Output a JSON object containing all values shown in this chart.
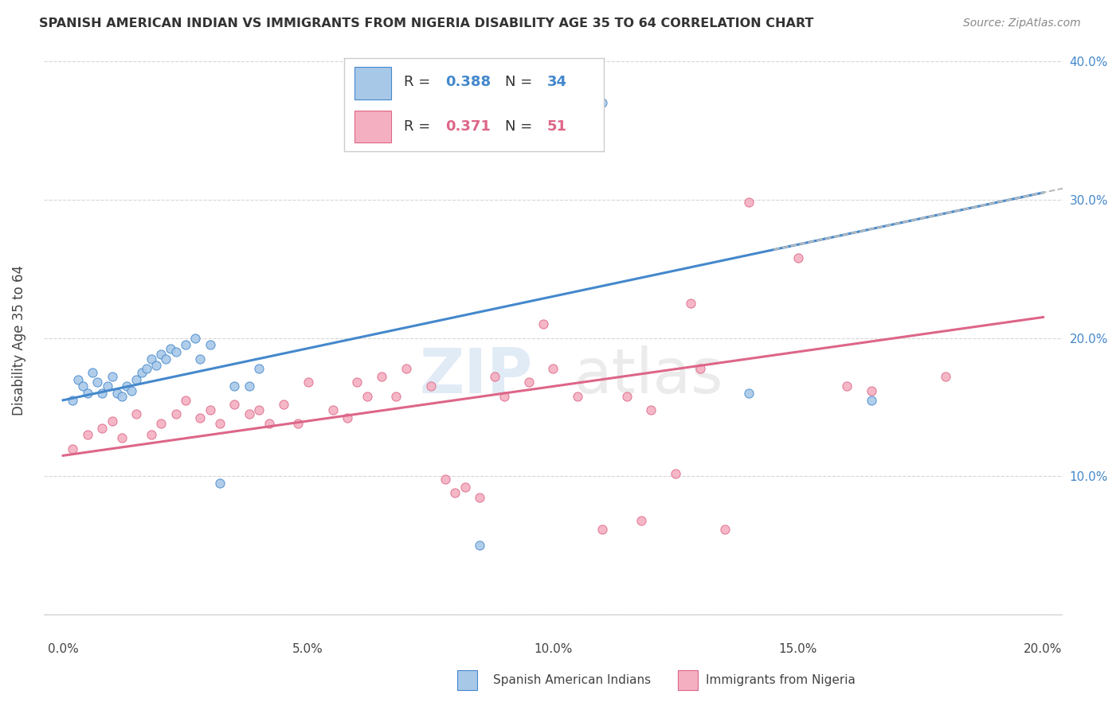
{
  "title": "SPANISH AMERICAN INDIAN VS IMMIGRANTS FROM NIGERIA DISABILITY AGE 35 TO 64 CORRELATION CHART",
  "source": "Source: ZipAtlas.com",
  "ylabel": "Disability Age 35 to 64",
  "xlim": [
    0.0,
    0.2
  ],
  "ylim": [
    0.0,
    0.4
  ],
  "x_ticks": [
    0.0,
    0.05,
    0.1,
    0.15,
    0.2
  ],
  "y_ticks": [
    0.0,
    0.1,
    0.2,
    0.3,
    0.4
  ],
  "legend1_r": "0.388",
  "legend1_n": "34",
  "legend2_r": "0.371",
  "legend2_n": "51",
  "color_blue": "#a8c8e8",
  "color_pink": "#f4b0c0",
  "line_blue": "#4488cc",
  "line_pink": "#dd6688",
  "line_dashed_color": "#bbbbbb",
  "watermark": "ZIPatlas",
  "blue_scatter_x": [
    0.002,
    0.003,
    0.004,
    0.005,
    0.006,
    0.007,
    0.008,
    0.009,
    0.01,
    0.011,
    0.012,
    0.013,
    0.014,
    0.015,
    0.016,
    0.017,
    0.018,
    0.019,
    0.02,
    0.021,
    0.022,
    0.023,
    0.025,
    0.027,
    0.028,
    0.03,
    0.032,
    0.035,
    0.038,
    0.04,
    0.085,
    0.11,
    0.14,
    0.165
  ],
  "blue_scatter_y": [
    0.155,
    0.17,
    0.165,
    0.16,
    0.175,
    0.168,
    0.16,
    0.165,
    0.172,
    0.16,
    0.158,
    0.165,
    0.162,
    0.17,
    0.175,
    0.178,
    0.185,
    0.18,
    0.188,
    0.185,
    0.192,
    0.19,
    0.195,
    0.2,
    0.185,
    0.195,
    0.095,
    0.165,
    0.165,
    0.178,
    0.05,
    0.37,
    0.16,
    0.155
  ],
  "pink_scatter_x": [
    0.002,
    0.005,
    0.008,
    0.01,
    0.012,
    0.015,
    0.018,
    0.02,
    0.023,
    0.025,
    0.028,
    0.03,
    0.032,
    0.035,
    0.038,
    0.04,
    0.042,
    0.045,
    0.048,
    0.05,
    0.055,
    0.058,
    0.06,
    0.062,
    0.065,
    0.068,
    0.07,
    0.075,
    0.078,
    0.08,
    0.082,
    0.085,
    0.088,
    0.09,
    0.095,
    0.098,
    0.1,
    0.105,
    0.11,
    0.115,
    0.118,
    0.12,
    0.125,
    0.128,
    0.13,
    0.135,
    0.14,
    0.15,
    0.16,
    0.165,
    0.18
  ],
  "pink_scatter_y": [
    0.12,
    0.13,
    0.135,
    0.14,
    0.128,
    0.145,
    0.13,
    0.138,
    0.145,
    0.155,
    0.142,
    0.148,
    0.138,
    0.152,
    0.145,
    0.148,
    0.138,
    0.152,
    0.138,
    0.168,
    0.148,
    0.142,
    0.168,
    0.158,
    0.172,
    0.158,
    0.178,
    0.165,
    0.098,
    0.088,
    0.092,
    0.085,
    0.172,
    0.158,
    0.168,
    0.21,
    0.178,
    0.158,
    0.062,
    0.158,
    0.068,
    0.148,
    0.102,
    0.225,
    0.178,
    0.062,
    0.298,
    0.258,
    0.165,
    0.162,
    0.172
  ]
}
